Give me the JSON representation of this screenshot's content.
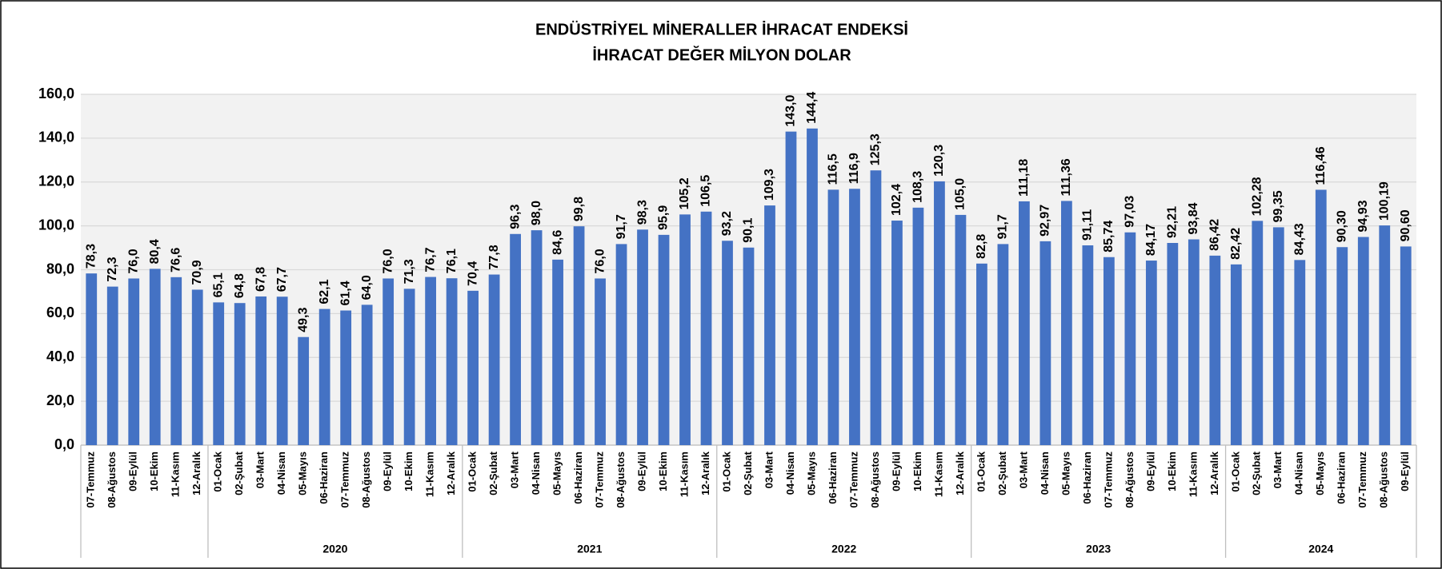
{
  "chart_data": {
    "type": "bar",
    "title": "ENDÜSTRİYEL MİNERALLER İHRACAT ENDEKSİ",
    "subtitle": "İHRACAT DEĞER MİLYON DOLAR",
    "categories": [
      "07-Temmuz",
      "08-Ağustos",
      "09-Eylül",
      "10-Ekim",
      "11-Kasım",
      "12-Aralık",
      "01-Ocak",
      "02-Şubat",
      "03-Mart",
      "04-Nisan",
      "05-Mayıs",
      "06-Haziran",
      "07-Temmuz",
      "08-Ağustos",
      "09-Eylül",
      "10-Ekim",
      "11-Kasım",
      "12-Aralık",
      "01-Ocak",
      "02-Şubat",
      "03-Mart",
      "04-Nisan",
      "05-Mayıs",
      "06-Haziran",
      "07-Temmuz",
      "08-Ağustos",
      "09-Eylül",
      "10-Ekim",
      "11-Kasım",
      "12-Aralık",
      "01-Ocak",
      "02-Şubat",
      "03-Mart",
      "04-Nisan",
      "05-Mayıs",
      "06-Haziran",
      "07-Temmuz",
      "08-Ağustos",
      "09-Eylül",
      "10-Ekim",
      "11-Kasım",
      "12-Aralık",
      "01-Ocak",
      "02-Şubat",
      "03-Mart",
      "04-Nisan",
      "05-Mayıs",
      "06-Haziran",
      "07-Temmuz",
      "08-Ağustos",
      "09-Eylül",
      "10-Ekim",
      "11-Kasım",
      "12-Aralık",
      "01-Ocak",
      "02-Şubat",
      "03-Mart",
      "04-Nisan",
      "05-Mayıs",
      "06-Haziran",
      "07-Temmuz",
      "08-Ağustos",
      "09-Eylül"
    ],
    "years": [
      null,
      null,
      null,
      null,
      null,
      null,
      "2020",
      "2020",
      "2020",
      "2020",
      "2020",
      "2020",
      "2020",
      "2020",
      "2020",
      "2020",
      "2020",
      "2020",
      "2021",
      "2021",
      "2021",
      "2021",
      "2021",
      "2021",
      "2021",
      "2021",
      "2021",
      "2021",
      "2021",
      "2021",
      "2022",
      "2022",
      "2022",
      "2022",
      "2022",
      "2022",
      "2022",
      "2022",
      "2022",
      "2022",
      "2022",
      "2022",
      "2023",
      "2023",
      "2023",
      "2023",
      "2023",
      "2023",
      "2023",
      "2023",
      "2023",
      "2023",
      "2023",
      "2023",
      "2024",
      "2024",
      "2024",
      "2024",
      "2024",
      "2024",
      "2024",
      "2024",
      "2024"
    ],
    "values": [
      78.3,
      72.3,
      76.0,
      80.4,
      76.6,
      70.9,
      65.1,
      64.8,
      67.8,
      67.7,
      49.3,
      62.1,
      61.4,
      64.0,
      76.0,
      71.3,
      76.7,
      76.1,
      70.4,
      77.8,
      96.3,
      98.0,
      84.6,
      99.8,
      76.0,
      91.7,
      98.3,
      95.9,
      105.2,
      106.5,
      93.2,
      90.1,
      109.3,
      143.0,
      144.4,
      116.5,
      116.9,
      125.3,
      102.4,
      108.3,
      120.3,
      105.0,
      82.8,
      91.7,
      111.18,
      92.97,
      111.36,
      91.11,
      85.74,
      97.03,
      84.17,
      92.21,
      93.84,
      86.42,
      82.42,
      102.28,
      99.35,
      84.43,
      116.46,
      90.3,
      94.93,
      100.19,
      90.6
    ],
    "value_labels": [
      "78,3",
      "72,3",
      "76,0",
      "80,4",
      "76,6",
      "70,9",
      "65,1",
      "64,8",
      "67,8",
      "67,7",
      "49,3",
      "62,1",
      "61,4",
      "64,0",
      "76,0",
      "71,3",
      "76,7",
      "76,1",
      "70,4",
      "77,8",
      "96,3",
      "98,0",
      "84,6",
      "99,8",
      "76,0",
      "91,7",
      "98,3",
      "95,9",
      "105,2",
      "106,5",
      "93,2",
      "90,1",
      "109,3",
      "143,0",
      "144,4",
      "116,5",
      "116,9",
      "125,3",
      "102,4",
      "108,3",
      "120,3",
      "105,0",
      "82,8",
      "91,7",
      "111,18",
      "92,97",
      "111,36",
      "91,11",
      "85,74",
      "97,03",
      "84,17",
      "92,21",
      "93,84",
      "86,42",
      "82,42",
      "102,28",
      "99,35",
      "84,43",
      "116,46",
      "90,30",
      "94,93",
      "100,19",
      "90,60"
    ],
    "color": "#4472c4",
    "ylim": [
      0,
      160
    ],
    "yticks": [
      {
        "value": 0,
        "label": "0,0"
      },
      {
        "value": 20,
        "label": "20,0"
      },
      {
        "value": 40,
        "label": "40,0"
      },
      {
        "value": 60,
        "label": "60,0"
      },
      {
        "value": 80,
        "label": "80,0"
      },
      {
        "value": 100,
        "label": "100,0"
      },
      {
        "value": 120,
        "label": "120,0"
      },
      {
        "value": 140,
        "label": "140,0"
      },
      {
        "value": 160,
        "label": "160,0"
      }
    ],
    "grid": true
  }
}
